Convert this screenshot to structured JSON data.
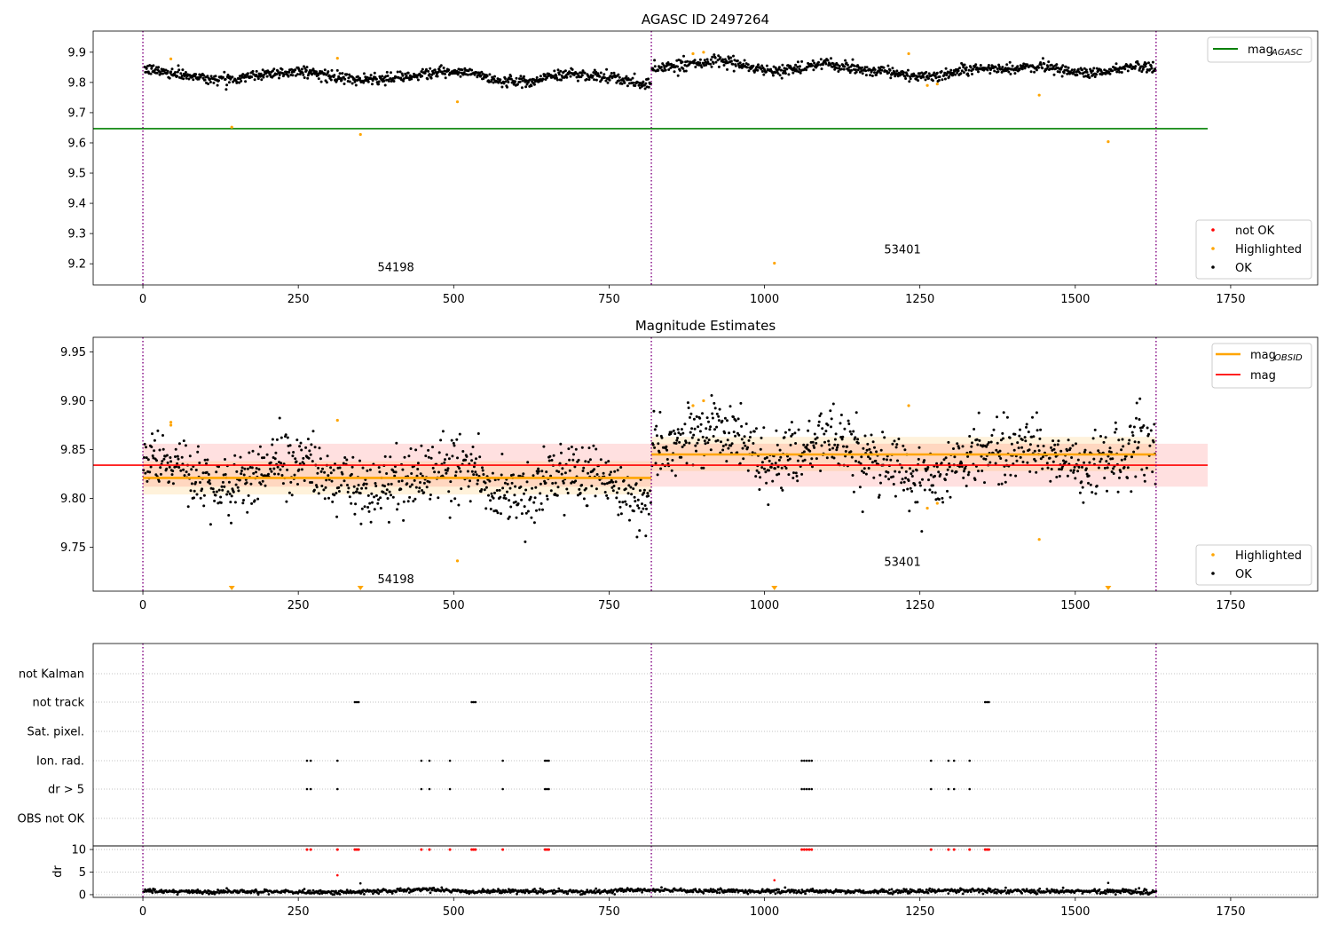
{
  "chart_data": [
    {
      "type": "scatter",
      "title": "AGASC ID 2497264",
      "xlabel": "",
      "ylabel": "",
      "xlim": [
        -80,
        1890
      ],
      "ylim": [
        9.13,
        9.97
      ],
      "xticks": [
        0,
        250,
        500,
        750,
        1000,
        1250,
        1500,
        1750
      ],
      "yticks": [
        9.2,
        9.3,
        9.4,
        9.5,
        9.6,
        9.7,
        9.8,
        9.9
      ],
      "xtick_labels": [
        "0",
        "250",
        "500",
        "750",
        "1000",
        "1250",
        "1500",
        "1750"
      ],
      "ytick_labels": [
        "9.2",
        "9.3",
        "9.4",
        "9.5",
        "9.6",
        "9.7",
        "9.8",
        "9.9"
      ],
      "grid": false,
      "obs_boundaries": [
        0,
        818,
        1630
      ],
      "obs_labels": [
        {
          "text": "54198",
          "x": 407,
          "y": 9.175
        },
        {
          "text": "53401",
          "x": 1222,
          "y": 9.235
        }
      ],
      "mag_agasc": {
        "value": 9.647,
        "x_range": [
          0,
          1713
        ]
      },
      "ok_segments": [
        {
          "x0": 0,
          "x1": 818,
          "trend": [
            [
              0,
              9.845
            ],
            [
              60,
              9.828
            ],
            [
              100,
              9.815
            ],
            [
              150,
              9.812
            ],
            [
              200,
              9.83
            ],
            [
              260,
              9.838
            ],
            [
              310,
              9.815
            ],
            [
              350,
              9.808
            ],
            [
              390,
              9.81
            ],
            [
              430,
              9.822
            ],
            [
              480,
              9.835
            ],
            [
              530,
              9.83
            ],
            [
              570,
              9.807
            ],
            [
              620,
              9.8
            ],
            [
              650,
              9.82
            ],
            [
              700,
              9.83
            ],
            [
              750,
              9.815
            ],
            [
              800,
              9.797
            ],
            [
              818,
              9.797
            ]
          ],
          "spread": 0.009
        },
        {
          "x0": 818,
          "x1": 1630,
          "trend": [
            [
              818,
              9.845
            ],
            [
              870,
              9.86
            ],
            [
              920,
              9.87
            ],
            [
              950,
              9.865
            ],
            [
              980,
              9.85
            ],
            [
              1010,
              9.835
            ],
            [
              1060,
              9.85
            ],
            [
              1100,
              9.862
            ],
            [
              1150,
              9.845
            ],
            [
              1200,
              9.835
            ],
            [
              1250,
              9.82
            ],
            [
              1280,
              9.82
            ],
            [
              1320,
              9.845
            ],
            [
              1360,
              9.845
            ],
            [
              1400,
              9.848
            ],
            [
              1450,
              9.852
            ],
            [
              1500,
              9.835
            ],
            [
              1550,
              9.835
            ],
            [
              1600,
              9.86
            ],
            [
              1630,
              9.845
            ]
          ],
          "spread": 0.009
        }
      ],
      "highlighted": [
        [
          45,
          9.878
        ],
        [
          143,
          9.652
        ],
        [
          313,
          9.88
        ],
        [
          350,
          9.628
        ],
        [
          506,
          9.736
        ],
        [
          1016,
          9.202
        ],
        [
          1232,
          9.895
        ],
        [
          1262,
          9.79
        ],
        [
          1278,
          9.795
        ],
        [
          1442,
          9.758
        ],
        [
          1553,
          9.604
        ],
        [
          885,
          9.895
        ],
        [
          902,
          9.9
        ]
      ],
      "legend_top": {
        "position": "top-right",
        "entries": [
          {
            "label": "mag",
            "sub": "AGASC",
            "color": "#008000"
          }
        ]
      },
      "legend_bottom": {
        "position": "bottom-right",
        "entries": [
          {
            "label": "not OK",
            "color": "#ff0000"
          },
          {
            "label": "Highlighted",
            "color": "#ffa500"
          },
          {
            "label": "OK",
            "color": "#000000"
          }
        ]
      }
    },
    {
      "type": "scatter",
      "title": "Magnitude Estimates",
      "xlabel": "",
      "ylabel": "",
      "xlim": [
        -80,
        1890
      ],
      "ylim": [
        9.705,
        9.965
      ],
      "xticks": [
        0,
        250,
        500,
        750,
        1000,
        1250,
        1500,
        1750
      ],
      "yticks": [
        9.75,
        9.8,
        9.85,
        9.9,
        9.95
      ],
      "xtick_labels": [
        "0",
        "250",
        "500",
        "750",
        "1000",
        "1250",
        "1500",
        "1750"
      ],
      "ytick_labels": [
        "9.75",
        "9.80",
        "9.85",
        "9.90",
        "9.95"
      ],
      "grid": false,
      "obs_boundaries": [
        0,
        818,
        1630
      ],
      "obs_labels": [
        {
          "text": "54198",
          "x": 407,
          "y": 9.713
        },
        {
          "text": "53401",
          "x": 1222,
          "y": 9.731
        }
      ],
      "mag": {
        "value": 9.834,
        "band": [
          9.812,
          9.856
        ],
        "x_range": [
          0,
          1713
        ]
      },
      "mag_obsid": [
        {
          "value": 9.821,
          "band": [
            9.804,
            9.838
          ],
          "x_range": [
            0,
            818
          ]
        },
        {
          "value": 9.845,
          "band": [
            9.828,
            9.863
          ],
          "x_range": [
            818,
            1630
          ]
        }
      ],
      "ok_segments": [
        {
          "x0": 0,
          "x1": 818,
          "trend": [
            [
              0,
              9.845
            ],
            [
              60,
              9.828
            ],
            [
              100,
              9.815
            ],
            [
              150,
              9.812
            ],
            [
              200,
              9.83
            ],
            [
              260,
              9.838
            ],
            [
              310,
              9.815
            ],
            [
              350,
              9.808
            ],
            [
              390,
              9.81
            ],
            [
              430,
              9.822
            ],
            [
              480,
              9.835
            ],
            [
              530,
              9.83
            ],
            [
              570,
              9.807
            ],
            [
              620,
              9.8
            ],
            [
              650,
              9.82
            ],
            [
              700,
              9.83
            ],
            [
              750,
              9.815
            ],
            [
              800,
              9.797
            ],
            [
              818,
              9.797
            ]
          ],
          "spread": 0.016
        },
        {
          "x0": 818,
          "x1": 1630,
          "trend": [
            [
              818,
              9.845
            ],
            [
              870,
              9.86
            ],
            [
              920,
              9.87
            ],
            [
              950,
              9.865
            ],
            [
              980,
              9.85
            ],
            [
              1010,
              9.835
            ],
            [
              1060,
              9.85
            ],
            [
              1100,
              9.862
            ],
            [
              1150,
              9.845
            ],
            [
              1200,
              9.835
            ],
            [
              1250,
              9.82
            ],
            [
              1280,
              9.82
            ],
            [
              1320,
              9.845
            ],
            [
              1360,
              9.845
            ],
            [
              1400,
              9.848
            ],
            [
              1450,
              9.852
            ],
            [
              1500,
              9.835
            ],
            [
              1550,
              9.835
            ],
            [
              1600,
              9.86
            ],
            [
              1630,
              9.845
            ]
          ],
          "spread": 0.016
        }
      ],
      "highlighted": [
        [
          45,
          9.878
        ],
        [
          45,
          9.875
        ],
        [
          313,
          9.88
        ],
        [
          506,
          9.736
        ],
        [
          1232,
          9.895
        ],
        [
          1262,
          9.79
        ],
        [
          1278,
          9.795
        ],
        [
          1442,
          9.758
        ],
        [
          885,
          9.895
        ],
        [
          902,
          9.9
        ]
      ],
      "below_range_markers": [
        143,
        350,
        1016,
        1553
      ],
      "legend_top": {
        "position": "top-right",
        "entries": [
          {
            "label": "mag",
            "sub": "OBSID",
            "color": "#ffa500"
          },
          {
            "label": "mag",
            "sub": "",
            "color": "#ff0000"
          }
        ]
      },
      "legend_bottom": {
        "position": "bottom-right",
        "entries": [
          {
            "label": "Highlighted",
            "color": "#ffa500"
          },
          {
            "label": "OK",
            "color": "#000000"
          }
        ]
      }
    },
    {
      "type": "scatter",
      "title": "",
      "xlim": [
        -80,
        1890
      ],
      "categories": [
        "not Kalman",
        "not track",
        "Sat. pixel.",
        "Ion. rad.",
        "dr > 5",
        "OBS not OK"
      ],
      "flags": {
        "not track": [
          341,
          344,
          347,
          529,
          532,
          535,
          1355,
          1358,
          1361
        ],
        "Ion. rad.": [
          264,
          270,
          313,
          448,
          461,
          494,
          579,
          647,
          650,
          653,
          1060,
          1064,
          1068,
          1072,
          1076,
          1268,
          1296,
          1305,
          1330
        ],
        "dr > 5": [
          264,
          270,
          313,
          448,
          461,
          494,
          579,
          647,
          650,
          653,
          1060,
          1064,
          1068,
          1072,
          1076,
          1268,
          1296,
          1305,
          1330
        ]
      },
      "obs_boundaries": [
        0,
        818,
        1630
      ]
    },
    {
      "type": "scatter",
      "title": "",
      "xlabel": "",
      "ylabel": "dr",
      "xlim": [
        -80,
        1890
      ],
      "ylim": [
        -0.6,
        10.8
      ],
      "yticks": [
        0,
        5,
        10
      ],
      "ytick_labels": [
        "0",
        "5",
        "10"
      ],
      "xticks": [
        0,
        250,
        500,
        750,
        1000,
        1250,
        1500,
        1750
      ],
      "xtick_labels": [
        "0",
        "250",
        "500",
        "750",
        "1000",
        "1250",
        "1500",
        "1750"
      ],
      "dr_trend": [
        [
          0,
          0.8
        ],
        [
          100,
          0.6
        ],
        [
          200,
          0.7
        ],
        [
          300,
          0.5
        ],
        [
          400,
          0.8
        ],
        [
          460,
          1.2
        ],
        [
          520,
          0.6
        ],
        [
          600,
          0.8
        ],
        [
          700,
          0.6
        ],
        [
          800,
          1.0
        ],
        [
          900,
          0.9
        ],
        [
          1000,
          0.7
        ],
        [
          1100,
          0.8
        ],
        [
          1200,
          0.6
        ],
        [
          1300,
          0.9
        ],
        [
          1400,
          0.7
        ],
        [
          1500,
          0.8
        ],
        [
          1630,
          0.6
        ]
      ],
      "dr_outliers": [
        [
          313,
          4.3
        ],
        [
          350,
          2.5
        ],
        [
          1016,
          3.2
        ],
        [
          1553,
          2.6
        ]
      ],
      "not_ok_at_10": [
        264,
        270,
        313,
        341,
        344,
        347,
        448,
        461,
        494,
        529,
        532,
        535,
        579,
        647,
        650,
        653,
        1060,
        1064,
        1068,
        1072,
        1076,
        1268,
        1296,
        1305,
        1330,
        1355,
        1358,
        1361
      ],
      "obs_boundaries": [
        0,
        818,
        1630
      ]
    }
  ]
}
